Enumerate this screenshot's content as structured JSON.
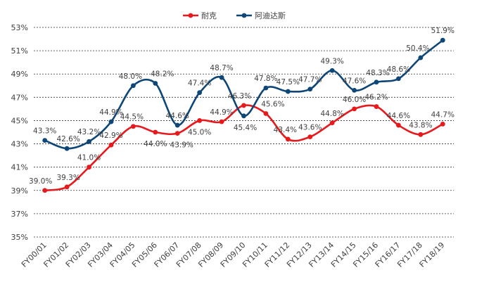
{
  "chart_data": {
    "type": "line",
    "title": "",
    "xlabel": "",
    "ylabel": "",
    "categories": [
      "FY00/01",
      "FY01/02",
      "FY02/03",
      "FY03/04",
      "FY04/05",
      "FY05/06",
      "FY06/07",
      "FY07/08",
      "FY08/09",
      "FY09/10",
      "FY10/11",
      "FY11/12",
      "FY12/13",
      "FY13/14",
      "FY14/15",
      "FY15/16",
      "FY16/17",
      "FY17/18",
      "FY18/19"
    ],
    "ylim": [
      35,
      53
    ],
    "yticks": [
      "35%",
      "37%",
      "39%",
      "41%",
      "43%",
      "45%",
      "47%",
      "49%",
      "51%",
      "53%"
    ],
    "grid": true,
    "legend_position": "top",
    "series": [
      {
        "name": "耐克",
        "color": "#e8191c",
        "values": [
          39.0,
          39.3,
          41.0,
          42.9,
          44.5,
          44.0,
          43.9,
          45.0,
          44.9,
          46.3,
          45.6,
          43.4,
          43.6,
          44.8,
          46.0,
          46.2,
          44.6,
          43.8,
          44.7
        ],
        "labels": [
          "39.0%",
          "39.3%",
          "41.0%",
          "42.9%",
          "44.5%",
          "44.0%",
          "43.9%",
          "45.0%",
          "44.9%",
          "46.3%",
          "45.6%",
          "43.4%",
          "43.6%",
          "44.8%",
          "46.0%",
          "46.2%",
          "44.6%",
          "43.8%",
          "44.7%"
        ]
      },
      {
        "name": "阿迪达斯",
        "color": "#0d4677",
        "values": [
          43.3,
          42.6,
          43.2,
          44.9,
          48.0,
          48.2,
          44.6,
          47.4,
          48.7,
          45.4,
          47.8,
          47.5,
          47.7,
          49.3,
          47.6,
          48.3,
          48.6,
          50.4,
          51.9
        ],
        "labels": [
          "43.3%",
          "42.6%",
          "43.2%",
          "44.9%",
          "48.0%",
          "48.2%",
          "44.6%",
          "47.4%",
          "48.7%",
          "45.4%",
          "47.8%",
          "47.5%",
          "47.7%",
          "49.3%",
          "47.6%",
          "48.3%",
          "48.6%",
          "50.4%",
          "51.9%"
        ]
      }
    ]
  }
}
